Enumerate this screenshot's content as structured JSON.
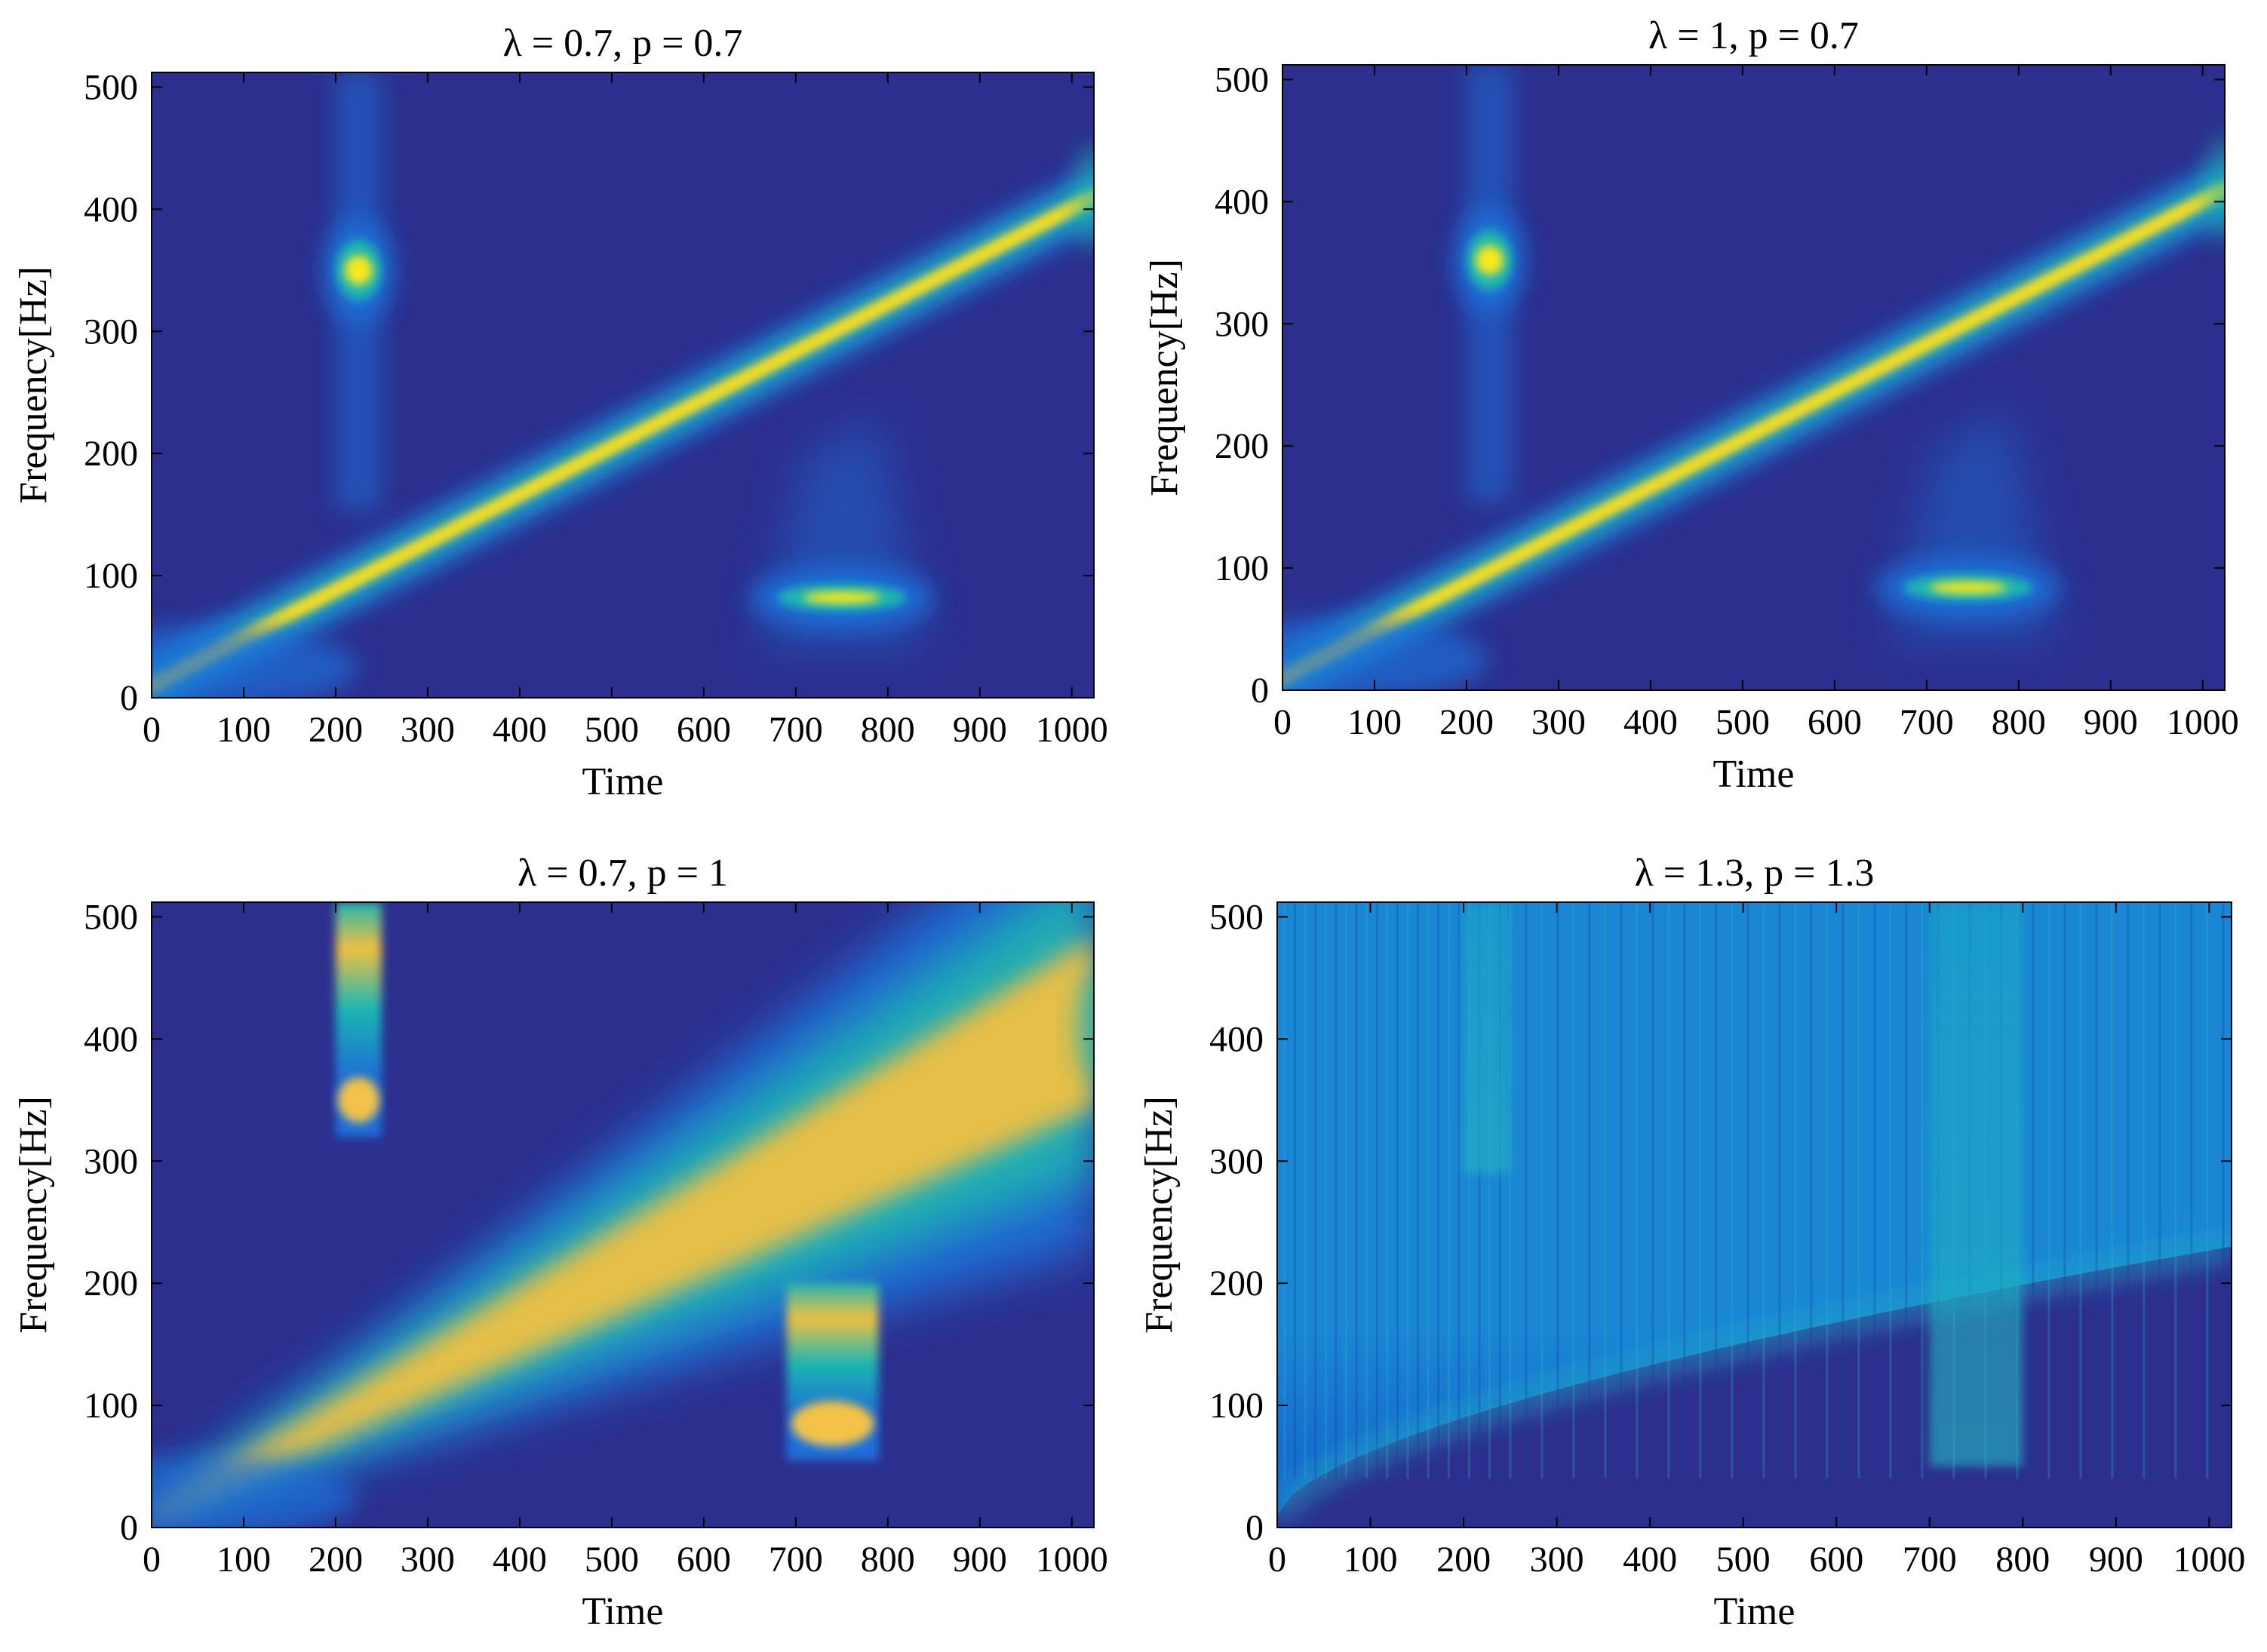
{
  "chart_data": [
    {
      "type": "heatmap",
      "title": "λ = 0.7, p = 0.7",
      "xlabel": "Time",
      "ylabel": "Frequency[Hz]",
      "xlim": [
        0,
        1024
      ],
      "ylim": [
        0,
        512
      ],
      "xticks": [
        0,
        100,
        200,
        300,
        400,
        500,
        600,
        700,
        800,
        900,
        1000
      ],
      "yticks": [
        0,
        100,
        200,
        300,
        400,
        500
      ],
      "colormap": {
        "background": "#2c2f8e",
        "low": "#1e6fd8",
        "mid": "#1fb6b0",
        "high": "#f0d030",
        "peak": "#f8e81c"
      },
      "features": [
        {
          "kind": "chirp",
          "t_start": 0,
          "f_start": 10,
          "t_end": 1024,
          "f_end": 410,
          "spread": "narrow"
        },
        {
          "kind": "burst",
          "t_center": 225,
          "f_center": 350,
          "t_range": [
            200,
            250
          ],
          "smear": "vertical"
        },
        {
          "kind": "burst",
          "t_center": 750,
          "f_center": 82,
          "t_range": [
            700,
            800
          ],
          "smear": "horizontal"
        }
      ]
    },
    {
      "type": "heatmap",
      "title": "λ = 1, p = 0.7",
      "xlabel": "Time",
      "ylabel": "Frequency[Hz]",
      "xlim": [
        0,
        1024
      ],
      "ylim": [
        0,
        512
      ],
      "xticks": [
        0,
        100,
        200,
        300,
        400,
        500,
        600,
        700,
        800,
        900,
        1000
      ],
      "yticks": [
        0,
        100,
        200,
        300,
        400,
        500
      ],
      "colormap": {
        "background": "#2c2f8e",
        "low": "#1e6fd8",
        "mid": "#1fb6b0",
        "high": "#f0d030",
        "peak": "#f8e81c"
      },
      "features": [
        {
          "kind": "chirp",
          "t_start": 0,
          "f_start": 10,
          "t_end": 1024,
          "f_end": 410,
          "spread": "narrow"
        },
        {
          "kind": "burst",
          "t_center": 225,
          "f_center": 352,
          "t_range": [
            200,
            250
          ],
          "smear": "vertical"
        },
        {
          "kind": "burst",
          "t_center": 745,
          "f_center": 84,
          "t_range": [
            700,
            800
          ],
          "smear": "horizontal"
        }
      ]
    },
    {
      "type": "heatmap",
      "title": "λ = 0.7, p = 1",
      "xlabel": "Time",
      "ylabel": "Frequency[Hz]",
      "xlim": [
        0,
        1024
      ],
      "ylim": [
        0,
        512
      ],
      "xticks": [
        0,
        100,
        200,
        300,
        400,
        500,
        600,
        700,
        800,
        900,
        1000
      ],
      "yticks": [
        0,
        100,
        200,
        300,
        400,
        500
      ],
      "colormap": {
        "background": "#2c2f8e",
        "low": "#1e6fd8",
        "mid": "#1fb6b0",
        "high": "#f0c040",
        "peak": "#f2c24a"
      },
      "features": [
        {
          "kind": "chirp",
          "t_start": 0,
          "f_start": 10,
          "t_end": 1024,
          "f_end": 410,
          "spread": "wide"
        },
        {
          "kind": "burst",
          "t_center": 225,
          "f_center": 350,
          "t_range": [
            200,
            250
          ],
          "smear": "column"
        },
        {
          "kind": "burst",
          "t_center": 740,
          "f_center": 85,
          "t_range": [
            690,
            790
          ],
          "smear": "column"
        }
      ]
    },
    {
      "type": "heatmap",
      "title": "λ = 1.3, p = 1.3",
      "xlabel": "Time",
      "ylabel": "Frequency[Hz]",
      "xlim": [
        0,
        1024
      ],
      "ylim": [
        0,
        512
      ],
      "xticks": [
        0,
        100,
        200,
        300,
        400,
        500,
        600,
        700,
        800,
        900,
        1000
      ],
      "yticks": [
        0,
        100,
        200,
        300,
        400,
        500
      ],
      "colormap": {
        "background": "#2c2f8e",
        "low": "#1560c8",
        "mid": "#1a86d4",
        "high": "#1ca8c8",
        "peak": "#24b4c0"
      },
      "features": [
        {
          "kind": "chirp",
          "t_start": 0,
          "f_start": 10,
          "t_end": 1024,
          "f_end": 230,
          "spread": "diffuse"
        },
        {
          "kind": "burst",
          "t_center": 225,
          "f_center": 300,
          "t_range": [
            200,
            250
          ],
          "smear": "column"
        },
        {
          "kind": "burst",
          "t_center": 750,
          "f_center": 60,
          "t_range": [
            700,
            800
          ],
          "smear": "column"
        }
      ]
    }
  ]
}
